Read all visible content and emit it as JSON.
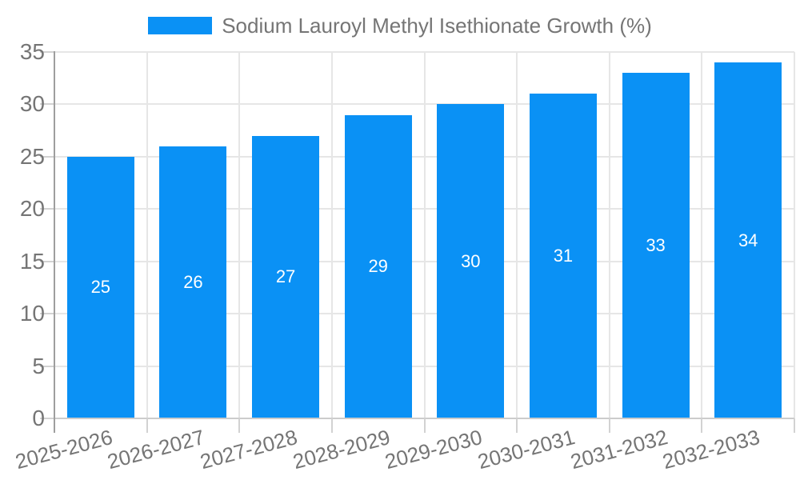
{
  "chart_data": {
    "type": "bar",
    "title": "",
    "legend": {
      "label": "Sodium Lauroyl Methyl Isethionate Growth (%)",
      "position": "top-center"
    },
    "categories": [
      "2025-2026",
      "2026-2027",
      "2027-2028",
      "2028-2029",
      "2029-2030",
      "2030-2031",
      "2031-2032",
      "2032-2033"
    ],
    "values": [
      25,
      26,
      27,
      29,
      30,
      31,
      33,
      34
    ],
    "xlabel": "",
    "ylabel": "",
    "ylim": [
      0,
      35
    ],
    "ytick_step": 5,
    "yticks": [
      0,
      5,
      10,
      15,
      20,
      25,
      30,
      35
    ],
    "grid": true,
    "x_label_rotation_deg": -15,
    "colors": {
      "bar": "#0A91F5",
      "grid": "#e6e6e6",
      "axis": "#9e9e9e",
      "baseline": "#cccccc",
      "tick": "#d2d2d2",
      "tick_label": "#757575",
      "value_label": "#ffffff",
      "background": "#ffffff"
    }
  }
}
